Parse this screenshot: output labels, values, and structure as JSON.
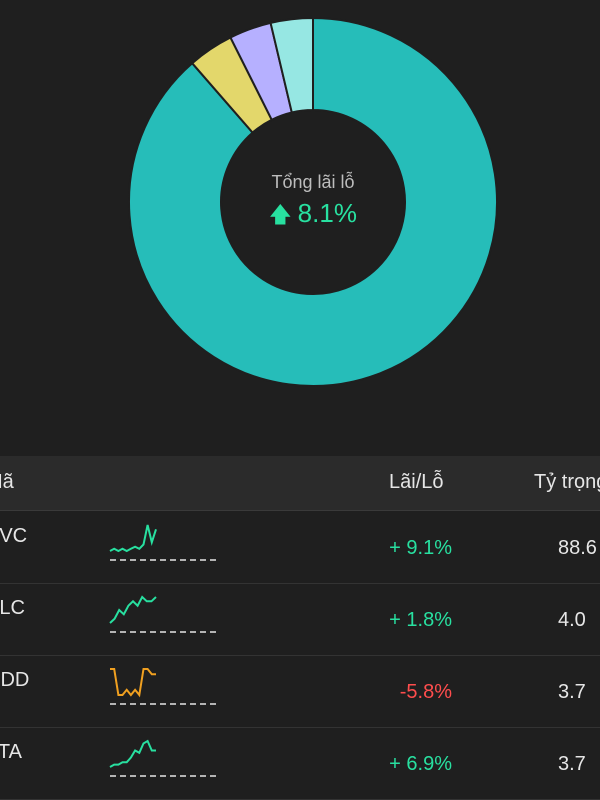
{
  "donut": {
    "center_label": "Tổng lãi lỗ",
    "center_value": "8.1%",
    "arrow_icon": "arrow-up-icon",
    "accent_color": "#28e0a0",
    "slices": [
      {
        "value": 88.6,
        "color": "#26bdb9"
      },
      {
        "value": 4.0,
        "color": "#e3d76b"
      },
      {
        "value": 3.7,
        "color": "#b6b0ff"
      },
      {
        "value": 3.7,
        "color": "#96e7e3"
      }
    ]
  },
  "table": {
    "headers": {
      "code": "Mã",
      "pl": "Lãi/Lỗ",
      "weight": "Tỷ trọng"
    },
    "rows": [
      {
        "code": "VVC",
        "pl": "+ 9.1%",
        "weight": "88.6",
        "direction": "up",
        "spark": [
          2,
          3,
          2,
          3,
          2,
          3,
          4,
          3,
          5,
          14,
          6,
          12
        ]
      },
      {
        "code": "ALC",
        "pl": "+ 1.8%",
        "weight": "4.0",
        "direction": "up",
        "spark": [
          4,
          5,
          7,
          6,
          8,
          9,
          8,
          10,
          9,
          9,
          10
        ]
      },
      {
        "code": "DDD",
        "pl": "-5.8%",
        "weight": "3.7",
        "direction": "down",
        "spark": [
          6,
          6,
          1,
          1,
          2,
          1,
          2,
          1,
          6,
          6,
          5,
          5
        ]
      },
      {
        "code": "ATA",
        "pl": "+ 6.9%",
        "weight": "3.7",
        "direction": "up",
        "spark": [
          2,
          3,
          3,
          4,
          4,
          6,
          9,
          8,
          12,
          13,
          9,
          9
        ]
      }
    ]
  }
}
